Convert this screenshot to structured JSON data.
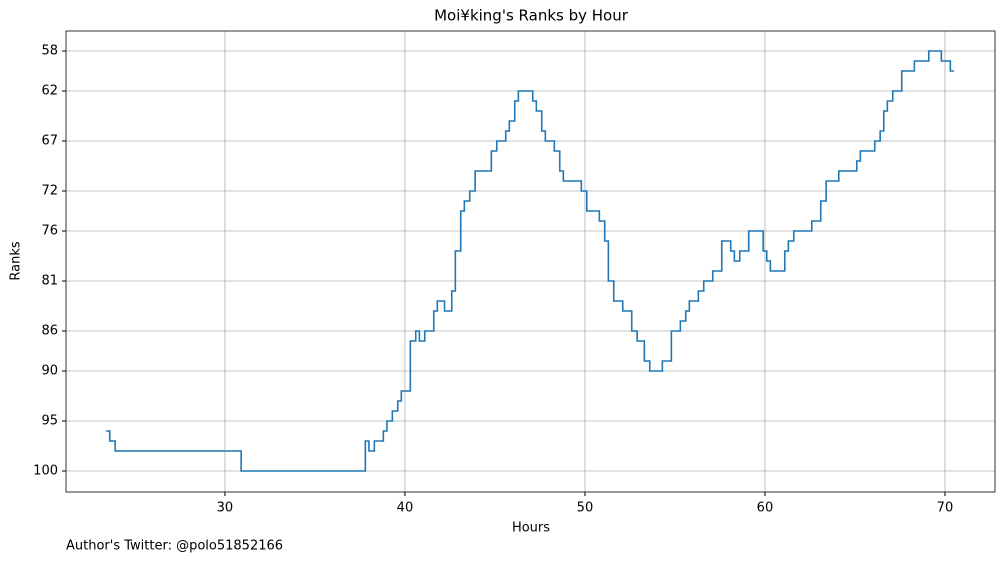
{
  "chart_data": {
    "type": "step",
    "title": "Moi¥king's Ranks by Hour",
    "xlabel": "Hours",
    "ylabel": "Ranks",
    "footnote": "Author's Twitter: @polo51852166",
    "xlim": [
      21.17,
      72.78
    ],
    "xticks": [
      30,
      40,
      50,
      60,
      70
    ],
    "ylim": [
      102.1,
      56
    ],
    "yticks": [
      58,
      62,
      67,
      72,
      76,
      81,
      86,
      90,
      95,
      100
    ],
    "grid": true,
    "series": [
      {
        "color": "#1f77b4",
        "x": [
          23.4,
          23.6,
          23.9,
          30.9,
          37.8,
          38.0,
          38.3,
          38.8,
          39.0,
          39.3,
          39.6,
          39.8,
          40.3,
          40.6,
          40.8,
          41.1,
          41.6,
          41.8,
          42.2,
          42.6,
          42.8,
          43.1,
          43.3,
          43.6,
          43.9,
          44.8,
          45.1,
          45.6,
          45.8,
          46.1,
          46.3,
          47.1,
          47.3,
          47.6,
          47.8,
          48.3,
          48.6,
          48.8,
          49.8,
          50.1,
          50.8,
          51.1,
          51.3,
          51.6,
          52.1,
          52.6,
          52.9,
          53.3,
          53.6,
          54.3,
          54.8,
          55.3,
          55.6,
          55.8,
          56.3,
          56.6,
          57.1,
          57.6,
          58.1,
          58.3,
          58.6,
          59.1,
          59.9,
          60.1,
          60.3,
          61.1,
          61.3,
          61.6,
          62.6,
          63.1,
          63.4,
          64.1,
          65.1,
          65.3,
          66.1,
          66.4,
          66.6,
          66.8,
          67.1,
          67.6,
          68.3,
          69.1,
          69.8,
          70.3,
          70.5
        ],
        "values": [
          96,
          97,
          98,
          100,
          97,
          98,
          97,
          96,
          95,
          94,
          93,
          92,
          87,
          86,
          87,
          86,
          84,
          83,
          84,
          82,
          78,
          74,
          73,
          72,
          70,
          68,
          67,
          66,
          65,
          63,
          62,
          63,
          64,
          66,
          67,
          68,
          70,
          71,
          72,
          74,
          75,
          77,
          81,
          83,
          84,
          86,
          87,
          89,
          90,
          89,
          86,
          85,
          84,
          83,
          82,
          81,
          80,
          77,
          78,
          79,
          78,
          76,
          78,
          79,
          80,
          78,
          77,
          76,
          75,
          73,
          71,
          70,
          69,
          68,
          67,
          66,
          64,
          63,
          62,
          60,
          59,
          58,
          59,
          60,
          60
        ]
      }
    ]
  }
}
